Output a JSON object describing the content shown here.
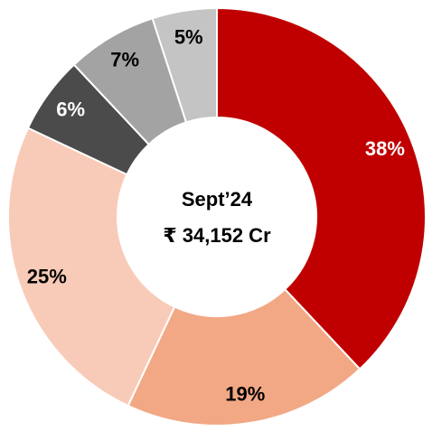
{
  "chart_data": {
    "type": "donut",
    "center_text": [
      "Sept’24",
      "₹ 34,152 Cr"
    ],
    "values": [
      38,
      19,
      25,
      6,
      7,
      5
    ],
    "value_labels": [
      "38%",
      "19%",
      "25%",
      "6%",
      "7%",
      "5%"
    ],
    "colors": [
      "#c00000",
      "#f2a884",
      "#f8cbb8",
      "#4b4b4b",
      "#a3a3a3",
      "#c4c4c4"
    ],
    "label_colors": [
      "#ffffff",
      "#000000",
      "#000000",
      "#ffffff",
      "#000000",
      "#000000"
    ]
  }
}
